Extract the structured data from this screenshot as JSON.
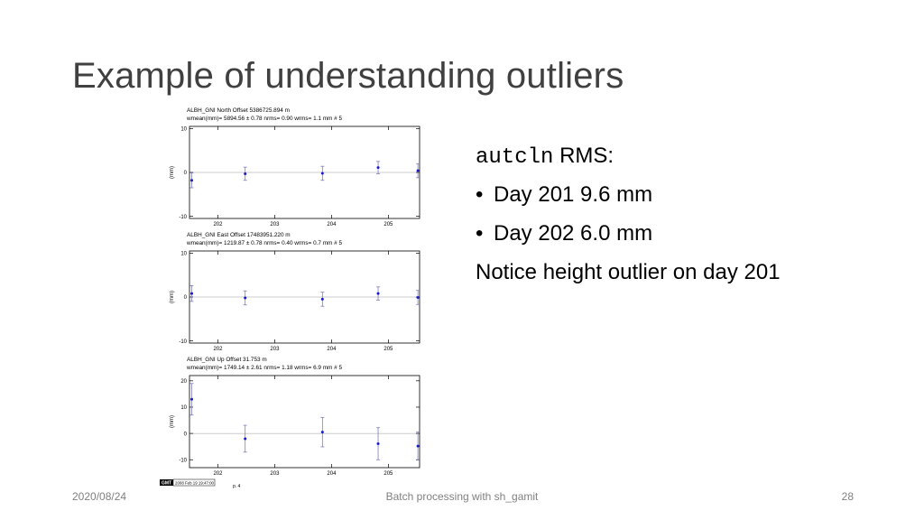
{
  "slide": {
    "title": "Example of understanding outliers",
    "text": {
      "cmd": "autcln",
      "rms_suffix": " RMS:",
      "bullets": [
        "Day 201  9.6 mm",
        "Day 202  6.0 mm"
      ],
      "note": "Notice height outlier on day 201"
    },
    "footer": {
      "date": "2020/08/24",
      "center": "Batch processing with sh_gamit",
      "page": "28"
    },
    "figure": {
      "stamp_logo": "GMT",
      "stamp_date": "2008 Feb 19 19:47:00",
      "page_label": "p. 4",
      "ylabel": "(mm)"
    }
  },
  "chart_data": [
    {
      "type": "scatter",
      "title": "ALBH_GNI  North Offset   5386725.894 m",
      "subtitle": "wmean(mm)= 5894.56 ± 0.78  nrms=  0.90  wrms=   1.1 mm # 5",
      "xlabel": "",
      "ylabel": "(mm)",
      "x_ticks": [
        202,
        203,
        204,
        205
      ],
      "y_ticks": [
        10,
        0,
        -10
      ],
      "xlim": [
        201.5,
        205.55
      ],
      "ylim": [
        -10.5,
        10.5
      ],
      "series": [
        {
          "x": [
            201.54,
            202.48,
            203.84,
            204.82,
            205.52
          ],
          "y": [
            -1.8,
            -0.3,
            -0.2,
            1.1,
            0.4
          ],
          "err": [
            1.7,
            1.5,
            1.6,
            1.4,
            1.6
          ]
        }
      ]
    },
    {
      "type": "scatter",
      "title": "ALBH_GNI  East Offset  17483951.220 m",
      "subtitle": "wmean(mm)= 1219.87 ± 0.78  nrms=  0.40  wrms=   0.7 mm # 5",
      "xlabel": "",
      "ylabel": "(mm)",
      "x_ticks": [
        202,
        203,
        204,
        205
      ],
      "y_ticks": [
        10,
        0,
        -10
      ],
      "xlim": [
        201.5,
        205.55
      ],
      "ylim": [
        -10.5,
        10.5
      ],
      "series": [
        {
          "x": [
            201.54,
            202.48,
            203.84,
            204.82,
            205.52
          ],
          "y": [
            0.8,
            -0.2,
            -0.5,
            0.8,
            -0.1
          ],
          "err": [
            1.8,
            1.6,
            1.6,
            1.5,
            1.6
          ]
        }
      ]
    },
    {
      "type": "scatter",
      "title": "ALBH_GNI  Up Offset       31.753 m",
      "subtitle": "wmean(mm)= 1749.14 ± 2.61  nrms=  1.18  wrms=   6.9 mm # 5",
      "xlabel": "",
      "ylabel": "(mm)",
      "x_ticks": [
        202,
        203,
        204,
        205
      ],
      "y_ticks": [
        20,
        10,
        0,
        -10
      ],
      "xlim": [
        201.5,
        205.55
      ],
      "ylim": [
        -13,
        22
      ],
      "series": [
        {
          "x": [
            201.54,
            202.48,
            203.84,
            204.82,
            205.52
          ],
          "y": [
            13.0,
            -2.0,
            0.5,
            -3.9,
            -4.8
          ],
          "err": [
            6.0,
            5.1,
            5.6,
            6.1,
            5.3
          ]
        }
      ]
    }
  ]
}
